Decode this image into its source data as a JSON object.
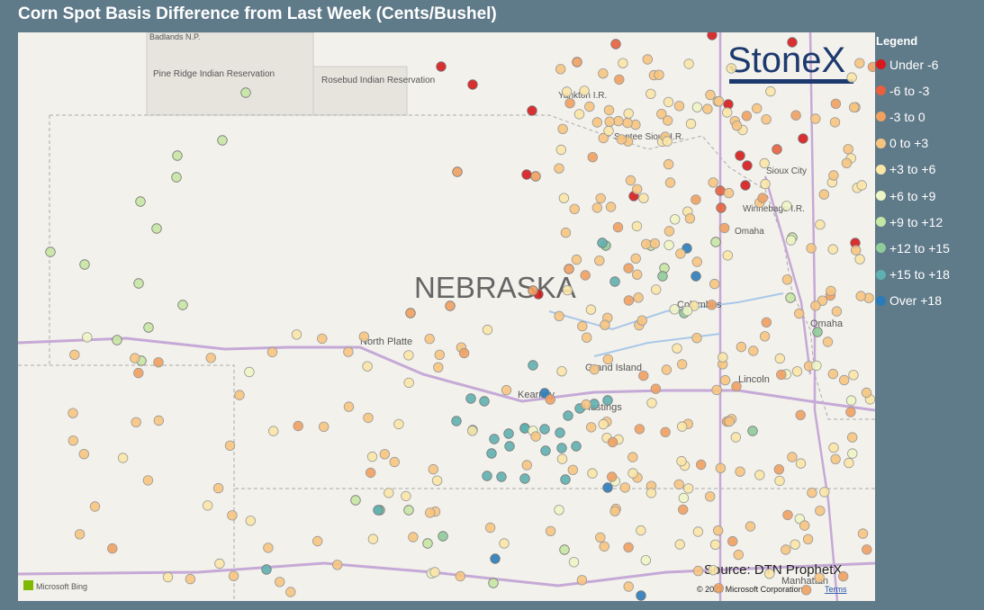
{
  "title": "Corn Spot Basis Difference from Last Week (Cents/Bushel)",
  "legend": {
    "title": "Legend",
    "items": [
      {
        "label": "Under -6",
        "color": "#d7191c"
      },
      {
        "label": "-6 to -3",
        "color": "#e8603e"
      },
      {
        "label": "-3 to 0",
        "color": "#f0a060"
      },
      {
        "label": "0 to +3",
        "color": "#f7c47f"
      },
      {
        "label": "+3 to +6",
        "color": "#fbe6a6"
      },
      {
        "label": "+6 to +9",
        "color": "#eef5c4"
      },
      {
        "label": "+9 to +12",
        "color": "#c6e6a4"
      },
      {
        "label": "+12 to +15",
        "color": "#8fcb9b"
      },
      {
        "label": "+15 to +18",
        "color": "#5fb0b0"
      },
      {
        "label": "Over +18",
        "color": "#2b7bba"
      }
    ]
  },
  "logo": "StoneX",
  "map": {
    "labels": [
      "Badlands N.P.",
      "Pine Ridge Indian Reservation",
      "Rosebud Indian Reservation",
      "Yankton I.R.",
      "Santee Sioux I.R.",
      "Sioux City",
      "Winnebago I.R.",
      "Omaha",
      "NEBRASKA",
      "North Platte",
      "Columbus",
      "Grand Island",
      "Kearney",
      "Hastings",
      "Lincoln",
      "Omaha",
      "Manhattan"
    ],
    "source": "Source: DTN ProphetX",
    "copyright": "© 2022 Microsoft Corporation",
    "terms": "Terms",
    "provider": "Microsoft Bing"
  }
}
